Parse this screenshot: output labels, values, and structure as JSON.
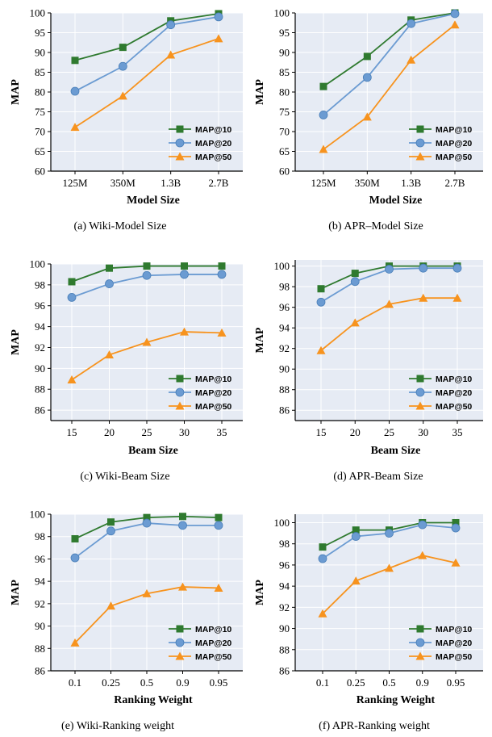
{
  "colors": {
    "MAP@10": "#2f7a2f",
    "MAP@20": "#6b9bd2",
    "MAP@50": "#f7931e",
    "plot_bg": "#e6ebf4",
    "grid": "#ffffff"
  },
  "chart_data": [
    {
      "type": "line",
      "caption": "(a)  Wiki-Model Size",
      "xlabel": "Model Size",
      "ylabel": "MAP",
      "categories": [
        "125M",
        "350M",
        "1.3B",
        "2.7B"
      ],
      "ylim": [
        60,
        100
      ],
      "yticks": [
        60,
        65,
        70,
        75,
        80,
        85,
        90,
        95,
        100
      ],
      "grid": true,
      "legend": "bottom-right",
      "series": [
        {
          "name": "MAP@10",
          "marker": "square",
          "values": [
            88.0,
            91.3,
            98.0,
            99.8
          ]
        },
        {
          "name": "MAP@20",
          "marker": "circle",
          "values": [
            80.2,
            86.5,
            97.0,
            99.0
          ]
        },
        {
          "name": "MAP@50",
          "marker": "triangle",
          "values": [
            71.1,
            79.0,
            89.4,
            93.5
          ]
        }
      ]
    },
    {
      "type": "line",
      "caption": "(b)  APR–Model Size",
      "xlabel": "Model Size",
      "ylabel": "MAP",
      "categories": [
        "125M",
        "350M",
        "1.3B",
        "2.7B"
      ],
      "ylim": [
        60,
        100
      ],
      "yticks": [
        60,
        65,
        70,
        75,
        80,
        85,
        90,
        95,
        100
      ],
      "grid": true,
      "legend": "bottom-right",
      "series": [
        {
          "name": "MAP@10",
          "marker": "square",
          "values": [
            81.4,
            89.0,
            98.2,
            100.0
          ]
        },
        {
          "name": "MAP@20",
          "marker": "circle",
          "values": [
            74.2,
            83.7,
            97.3,
            99.8
          ]
        },
        {
          "name": "MAP@50",
          "marker": "triangle",
          "values": [
            65.5,
            73.7,
            88.1,
            97.0
          ]
        }
      ]
    },
    {
      "type": "line",
      "caption": "(c)  Wiki-Beam Size",
      "xlabel": "Beam Size",
      "ylabel": "MAP",
      "categories": [
        "15",
        "20",
        "25",
        "30",
        "35"
      ],
      "ylim": [
        85,
        100
      ],
      "yticks": [
        86,
        88,
        90,
        92,
        94,
        96,
        98,
        100
      ],
      "grid": true,
      "legend": "bottom-right",
      "series": [
        {
          "name": "MAP@10",
          "marker": "square",
          "values": [
            98.3,
            99.6,
            99.8,
            99.8,
            99.8
          ]
        },
        {
          "name": "MAP@20",
          "marker": "circle",
          "values": [
            96.8,
            98.1,
            98.9,
            99.0,
            99.0
          ]
        },
        {
          "name": "MAP@50",
          "marker": "triangle",
          "values": [
            88.9,
            91.3,
            92.5,
            93.5,
            93.4
          ]
        }
      ]
    },
    {
      "type": "line",
      "caption": "(d)  APR-Beam Size",
      "xlabel": "Beam Size",
      "ylabel": "MAP",
      "categories": [
        "15",
        "20",
        "25",
        "30",
        "35"
      ],
      "ylim": [
        85,
        100.6
      ],
      "yticks": [
        86,
        88,
        90,
        92,
        94,
        96,
        98,
        100
      ],
      "grid": true,
      "legend": "bottom-right",
      "series": [
        {
          "name": "MAP@10",
          "marker": "square",
          "values": [
            97.8,
            99.3,
            100.0,
            100.0,
            100.0
          ]
        },
        {
          "name": "MAP@20",
          "marker": "circle",
          "values": [
            96.5,
            98.5,
            99.7,
            99.8,
            99.8
          ]
        },
        {
          "name": "MAP@50",
          "marker": "triangle",
          "values": [
            91.8,
            94.5,
            96.3,
            96.9,
            96.9
          ]
        }
      ]
    },
    {
      "type": "line",
      "caption": "(e)  Wiki-Ranking weight",
      "xlabel": "Ranking Weight",
      "ylabel": "MAP",
      "categories": [
        "0.1",
        "0.25",
        "0.5",
        "0.9",
        "0.95"
      ],
      "ylim": [
        86,
        100
      ],
      "yticks": [
        86,
        88,
        90,
        92,
        94,
        96,
        98,
        100
      ],
      "grid": true,
      "legend": "bottom-right",
      "series": [
        {
          "name": "MAP@10",
          "marker": "square",
          "values": [
            97.8,
            99.3,
            99.7,
            99.8,
            99.7
          ]
        },
        {
          "name": "MAP@20",
          "marker": "circle",
          "values": [
            96.1,
            98.5,
            99.2,
            99.0,
            99.0
          ]
        },
        {
          "name": "MAP@50",
          "marker": "triangle",
          "values": [
            88.5,
            91.8,
            92.9,
            93.5,
            93.4
          ]
        }
      ]
    },
    {
      "type": "line",
      "caption": "(f)  APR-Ranking weight",
      "xlabel": "Ranking Weight",
      "ylabel": "MAP",
      "categories": [
        "0.1",
        "0.25",
        "0.5",
        "0.9",
        "0.95"
      ],
      "ylim": [
        86,
        100.8
      ],
      "yticks": [
        86,
        88,
        90,
        92,
        94,
        96,
        98,
        100
      ],
      "grid": true,
      "legend": "bottom-right",
      "series": [
        {
          "name": "MAP@10",
          "marker": "square",
          "values": [
            97.7,
            99.3,
            99.3,
            100.0,
            100.0
          ]
        },
        {
          "name": "MAP@20",
          "marker": "circle",
          "values": [
            96.6,
            98.7,
            99.0,
            99.8,
            99.5
          ]
        },
        {
          "name": "MAP@50",
          "marker": "triangle",
          "values": [
            91.4,
            94.5,
            95.7,
            96.9,
            96.2
          ]
        }
      ]
    }
  ]
}
